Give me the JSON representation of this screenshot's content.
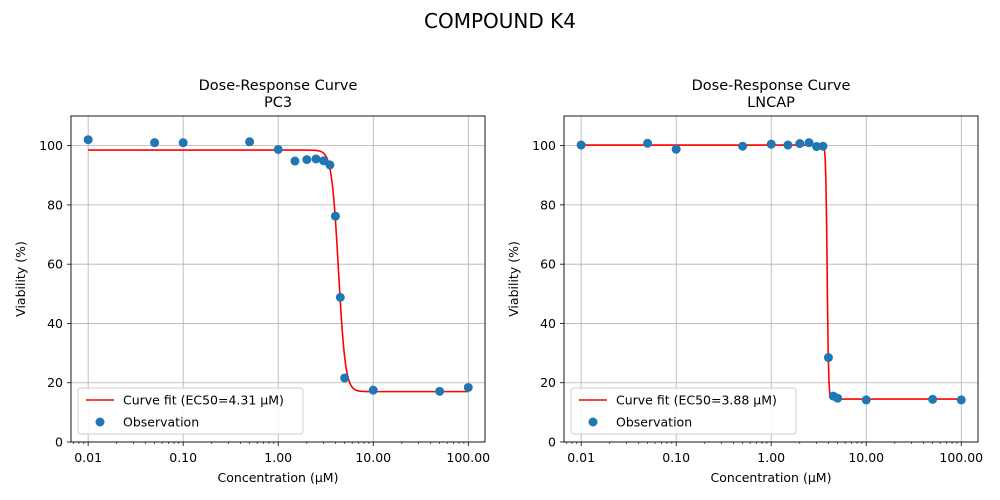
{
  "figure_title": "COMPOUND K4",
  "chart_data": [
    {
      "type": "scatter",
      "title": "Dose-Response Curve\nPC3",
      "title_line1": "Dose-Response Curve",
      "title_line2": "PC3",
      "xlabel": "Concentration (µM)",
      "ylabel": "Viability (%)",
      "x_scale": "log",
      "xlim": [
        0.0066,
        150
      ],
      "ylim": [
        0,
        110
      ],
      "x_ticks": [
        0.01,
        0.1,
        1,
        10,
        100
      ],
      "x_tick_labels": [
        "0.01",
        "0.10",
        "1.00",
        "10.00",
        "100.00"
      ],
      "y_ticks": [
        0,
        20,
        40,
        60,
        80,
        100
      ],
      "y_tick_labels": [
        "0",
        "20",
        "40",
        "60",
        "80",
        "100"
      ],
      "grid": true,
      "legend_position": "lower-left",
      "series": [
        {
          "name": "Curve fit (EC50=4.31 µM)",
          "kind": "line",
          "color": "#ff0000",
          "model": {
            "bottom": 17.0,
            "top": 98.5,
            "ec50": 4.31,
            "hill": 12
          }
        },
        {
          "name": "Observation",
          "kind": "scatter",
          "color": "#1f77b4",
          "x": [
            0.01,
            0.05,
            0.1,
            0.5,
            1.0,
            1.5,
            2.0,
            2.5,
            3.0,
            3.5,
            4.0,
            4.5,
            5.0,
            10,
            50,
            100
          ],
          "y": [
            102.0,
            101.0,
            101.0,
            101.3,
            98.7,
            94.8,
            95.3,
            95.5,
            94.9,
            93.5,
            76.2,
            48.8,
            21.6,
            17.5,
            17.1,
            18.4
          ]
        }
      ]
    },
    {
      "type": "scatter",
      "title": "Dose-Response Curve\nLNCAP",
      "title_line1": "Dose-Response Curve",
      "title_line2": "LNCAP",
      "xlabel": "Concentration (µM)",
      "ylabel": "Viability (%)",
      "x_scale": "log",
      "xlim": [
        0.0066,
        150
      ],
      "ylim": [
        0,
        110
      ],
      "x_ticks": [
        0.01,
        0.1,
        1,
        10,
        100
      ],
      "x_tick_labels": [
        "0.01",
        "0.10",
        "1.00",
        "10.00",
        "100.00"
      ],
      "y_ticks": [
        0,
        20,
        40,
        60,
        80,
        100
      ],
      "y_tick_labels": [
        "0",
        "20",
        "40",
        "60",
        "80",
        "100"
      ],
      "grid": true,
      "legend_position": "lower-left",
      "series": [
        {
          "name": "Curve fit (EC50=3.88 µM)",
          "kind": "line",
          "color": "#ff0000",
          "model": {
            "bottom": 14.5,
            "top": 100.2,
            "ec50": 3.88,
            "hill": 60
          }
        },
        {
          "name": "Observation",
          "kind": "scatter",
          "color": "#1f77b4",
          "x": [
            0.01,
            0.05,
            0.1,
            0.5,
            1.0,
            1.5,
            2.0,
            2.5,
            3.0,
            3.5,
            4.0,
            4.5,
            5.0,
            10,
            50,
            100
          ],
          "y": [
            100.2,
            100.8,
            98.8,
            99.8,
            100.5,
            100.2,
            100.7,
            101.0,
            99.7,
            99.8,
            28.5,
            15.5,
            14.8,
            14.2,
            14.4,
            14.2
          ]
        }
      ]
    }
  ]
}
